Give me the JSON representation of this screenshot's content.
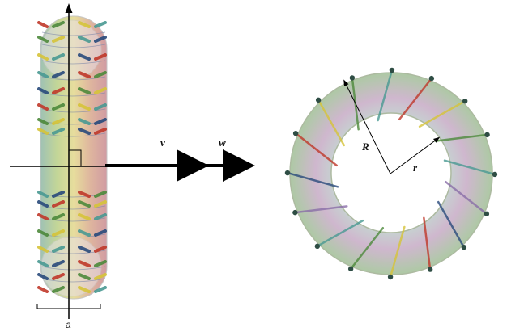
{
  "labels": {
    "v": "v",
    "w": "w",
    "R": "R",
    "r": "r",
    "a": "a"
  },
  "colors": {
    "arrow_red": "#c0392b",
    "arrow_green": "#4e8a3c",
    "arrow_yellow": "#d6c43a",
    "arrow_teal": "#4a9a93",
    "arrow_blue": "#2a4b7c",
    "arrow_purple": "#8a6fa8",
    "torus_face": "#c9b3c9"
  }
}
